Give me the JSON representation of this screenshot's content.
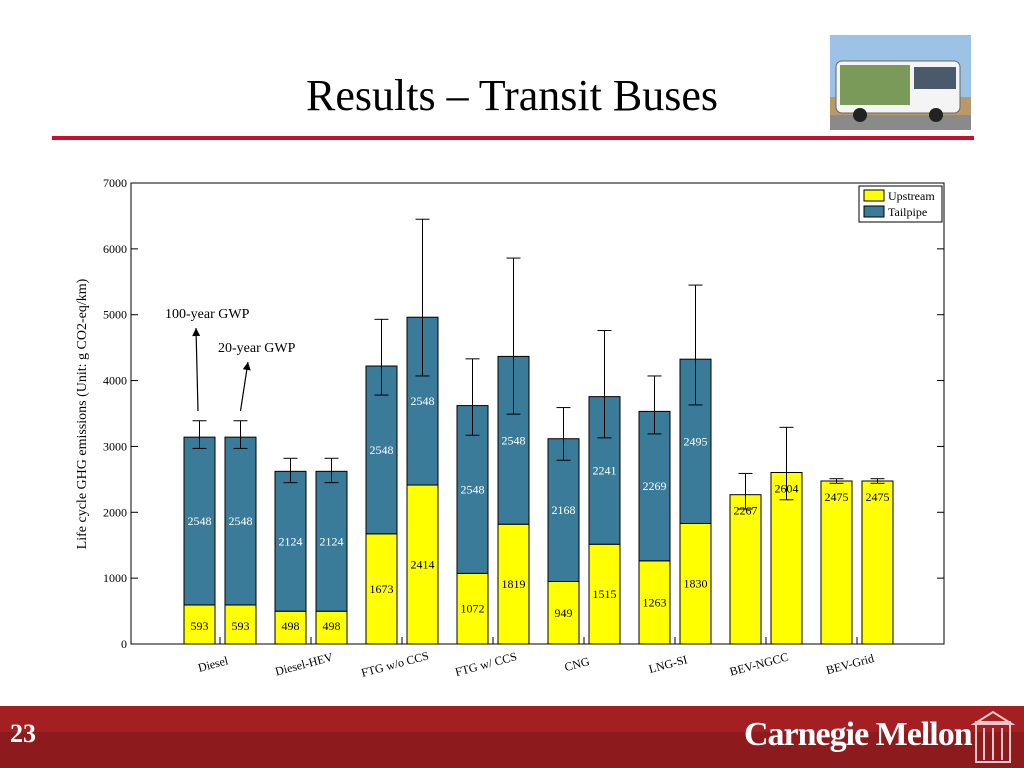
{
  "slide": {
    "title": "Results – Transit Buses",
    "number": "23",
    "brand": "Carnegie Mellon"
  },
  "colors": {
    "upstream": "#ffff00",
    "tailpipe": "#3b7b9a",
    "accent": "#c8102e",
    "footer": "#a41e22"
  },
  "annotations": [
    {
      "text": "100-year GWP",
      "target_category": "Diesel",
      "target_bar": 0
    },
    {
      "text": "20-year GWP",
      "target_category": "Diesel",
      "target_bar": 1
    }
  ],
  "chart_data": {
    "type": "bar",
    "stacked": true,
    "ylabel": "Life cycle GHG emissions (Unit: g CO2-eq/km)",
    "ylim": [
      0,
      7000
    ],
    "yticks": [
      0,
      1000,
      2000,
      3000,
      4000,
      5000,
      6000,
      7000
    ],
    "legend_position": "top-right",
    "legend": [
      "Upstream",
      "Tailpipe"
    ],
    "categories": [
      "Diesel",
      "Diesel-HEV",
      "FTG w/o CCS",
      "FTG w/ CCS",
      "CNG",
      "LNG-SI",
      "BEV-NGCC",
      "BEV-Grid"
    ],
    "bars": [
      {
        "category": "Diesel",
        "upstream": 593,
        "tailpipe": 2548,
        "err_low": 2970,
        "err_high": 3390
      },
      {
        "category": "Diesel",
        "upstream": 593,
        "tailpipe": 2548,
        "err_low": 2970,
        "err_high": 3390
      },
      {
        "category": "Diesel-HEV",
        "upstream": 498,
        "tailpipe": 2124,
        "err_low": 2450,
        "err_high": 2820
      },
      {
        "category": "Diesel-HEV",
        "upstream": 498,
        "tailpipe": 2124,
        "err_low": 2450,
        "err_high": 2820
      },
      {
        "category": "FTG w/o CCS",
        "upstream": 1673,
        "tailpipe": 2548,
        "err_low": 3780,
        "err_high": 4930
      },
      {
        "category": "FTG w/o CCS",
        "upstream": 2414,
        "tailpipe": 2548,
        "err_low": 4070,
        "err_high": 6450
      },
      {
        "category": "FTG w/ CCS",
        "upstream": 1072,
        "tailpipe": 2548,
        "err_low": 3170,
        "err_high": 4330
      },
      {
        "category": "FTG w/ CCS",
        "upstream": 1819,
        "tailpipe": 2548,
        "err_low": 3490,
        "err_high": 5860
      },
      {
        "category": "CNG",
        "upstream": 949,
        "tailpipe": 2168,
        "err_low": 2790,
        "err_high": 3590
      },
      {
        "category": "CNG",
        "upstream": 1515,
        "tailpipe": 2241,
        "err_low": 3130,
        "err_high": 4760
      },
      {
        "category": "LNG-SI",
        "upstream": 1263,
        "tailpipe": 2269,
        "err_low": 3190,
        "err_high": 4070
      },
      {
        "category": "LNG-SI",
        "upstream": 1830,
        "tailpipe": 2495,
        "err_low": 3630,
        "err_high": 5450
      },
      {
        "category": "BEV-NGCC",
        "upstream": 2267,
        "tailpipe": 0,
        "err_low": 2050,
        "err_high": 2590
      },
      {
        "category": "BEV-NGCC",
        "upstream": 2604,
        "tailpipe": 0,
        "err_low": 2190,
        "err_high": 3290
      },
      {
        "category": "BEV-Grid",
        "upstream": 2475,
        "tailpipe": 0,
        "err_low": 2440,
        "err_high": 2510
      },
      {
        "category": "BEV-Grid",
        "upstream": 2475,
        "tailpipe": 0,
        "err_low": 2440,
        "err_high": 2510
      }
    ]
  }
}
